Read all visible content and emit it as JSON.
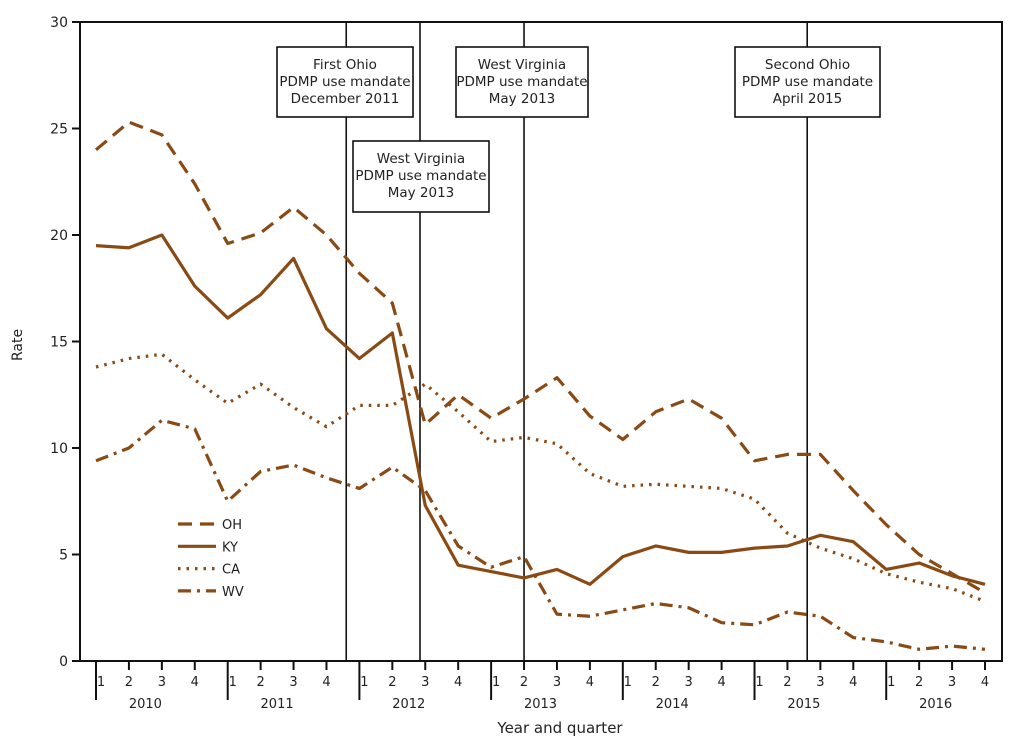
{
  "chart_data": {
    "type": "line",
    "title": "",
    "xlabel": "Year and quarter",
    "ylabel": "Rate",
    "ylim": [
      0,
      30
    ],
    "yticks": [
      "0",
      "5",
      "10",
      "15",
      "20",
      "25",
      "30"
    ],
    "grid": false,
    "legend_position": "left-middle",
    "color": "#8a4a14",
    "years": [
      "2010",
      "2011",
      "2012",
      "2013",
      "2014",
      "2015",
      "2016"
    ],
    "quarter_labels": [
      "1",
      "2",
      "3",
      "4"
    ],
    "series": [
      {
        "name": "OH",
        "style": "dashed",
        "values": [
          24.0,
          25.3,
          24.7,
          22.4,
          19.6,
          20.1,
          21.3,
          20.0,
          18.2,
          16.8,
          11.1,
          12.5,
          11.4,
          12.3,
          13.3,
          11.5,
          10.4,
          11.7,
          12.3,
          11.4,
          9.4,
          9.7,
          9.7,
          8.0,
          6.4,
          5.0,
          4.1,
          3.2
        ]
      },
      {
        "name": "KY",
        "style": "solid",
        "values": [
          19.5,
          19.4,
          20.0,
          17.6,
          16.1,
          17.2,
          18.9,
          15.6,
          14.2,
          15.4,
          7.3,
          4.5,
          4.2,
          3.9,
          4.3,
          3.6,
          4.9,
          5.4,
          5.1,
          5.1,
          5.3,
          5.4,
          5.9,
          5.6,
          4.3,
          4.6,
          4.0,
          3.6
        ]
      },
      {
        "name": "CA",
        "style": "dotted",
        "values": [
          13.8,
          14.2,
          14.4,
          13.2,
          12.1,
          13.0,
          11.9,
          11.0,
          12.0,
          12.0,
          13.0,
          11.7,
          10.3,
          10.5,
          10.2,
          8.8,
          8.2,
          8.3,
          8.2,
          8.1,
          7.6,
          6.0,
          5.3,
          4.8,
          4.1,
          3.7,
          3.4,
          2.8
        ]
      },
      {
        "name": "WV",
        "style": "dash-dot",
        "values": [
          9.4,
          10.0,
          11.3,
          10.9,
          7.5,
          8.9,
          9.2,
          8.6,
          8.1,
          9.1,
          8.0,
          5.4,
          4.4,
          4.9,
          2.2,
          2.1,
          2.4,
          2.7,
          2.5,
          1.8,
          1.7,
          2.3,
          2.1,
          1.1,
          0.9,
          0.55,
          0.7,
          0.55
        ]
      }
    ],
    "annotations": [
      {
        "lines": [
          "First Ohio",
          "PDMP use mandate",
          "December 2011"
        ],
        "x_year": 2011.9
      },
      {
        "lines": [
          "West Virginia",
          "PDMP use mandate",
          "May 2013"
        ],
        "x_year": 2012.46
      },
      {
        "lines": [
          "West Virginia",
          "PDMP use mandate",
          "May 2013"
        ],
        "x_year": 2013.25
      },
      {
        "lines": [
          "Second Ohio",
          "PDMP use mandate",
          "April 2015"
        ],
        "x_year": 2015.4
      }
    ]
  }
}
